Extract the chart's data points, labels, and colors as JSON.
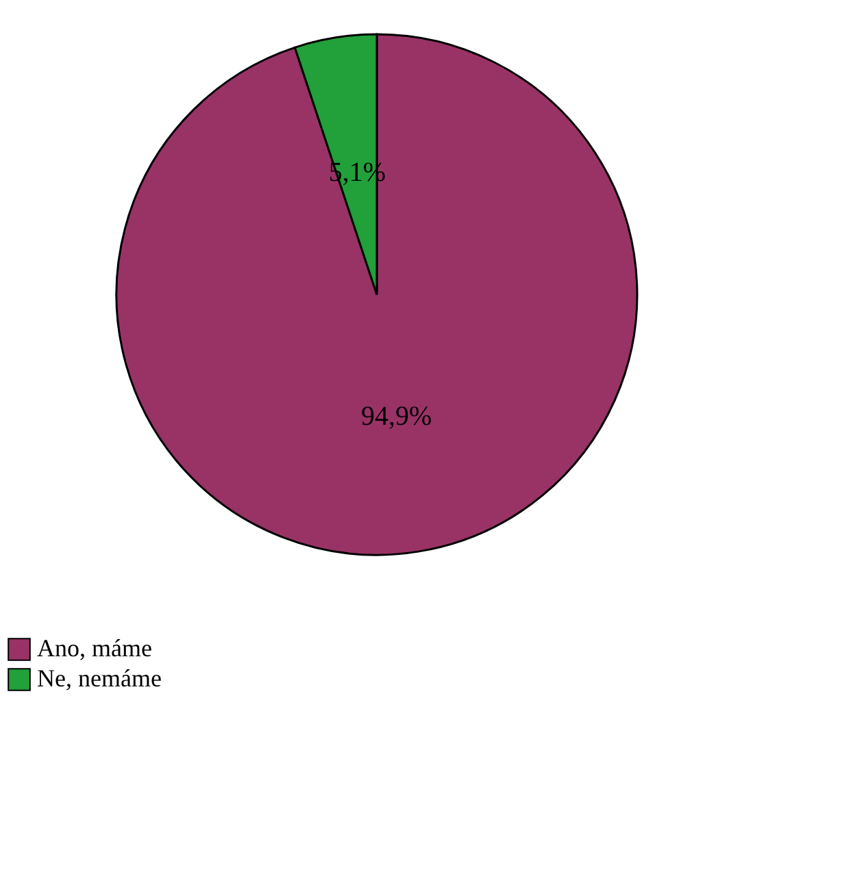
{
  "chart_data": {
    "type": "pie",
    "categories": [
      "Ano, máme",
      "Ne, nemáme"
    ],
    "values": [
      94.9,
      5.1
    ],
    "colors": [
      "#993366",
      "#22a03a"
    ],
    "value_labels": [
      "94,9%",
      "5,1%"
    ],
    "legend": "bottom"
  }
}
